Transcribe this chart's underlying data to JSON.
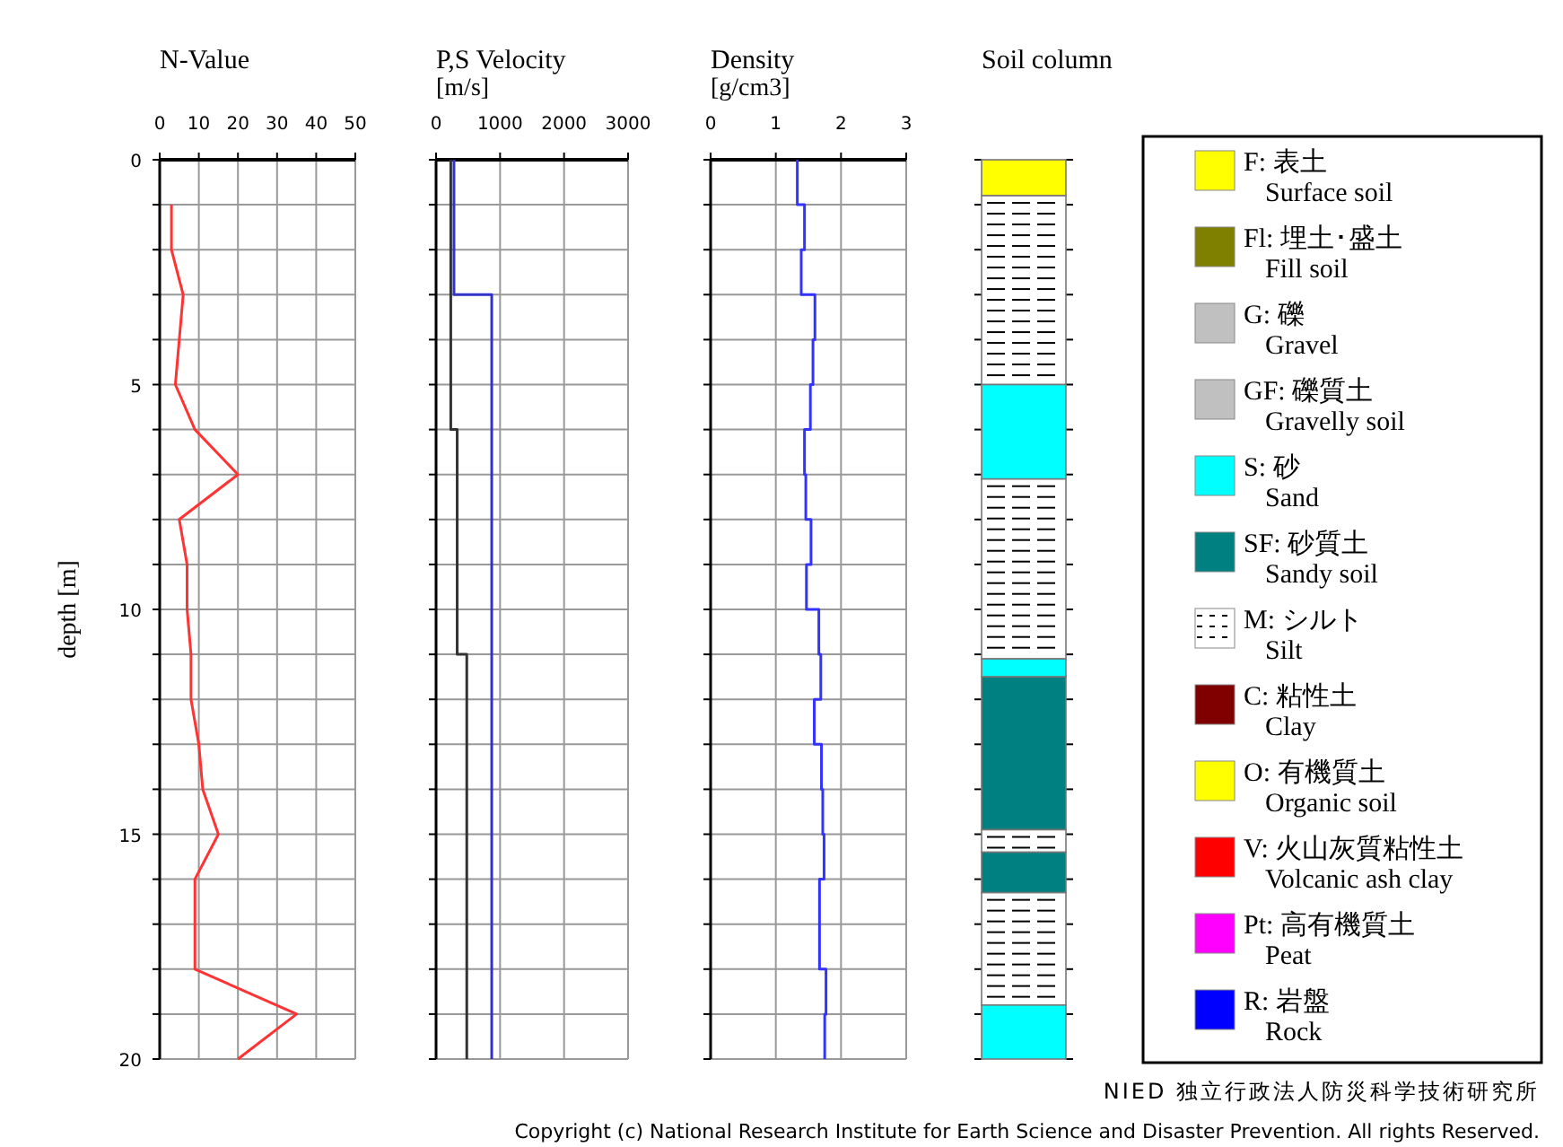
{
  "chart_data": [
    {
      "type": "line",
      "title": "N-Value",
      "ylabel": "depth [m]",
      "xlim": [
        0,
        50
      ],
      "xticks": [
        0,
        10,
        20,
        30,
        40,
        50
      ],
      "ylim": [
        20,
        0
      ],
      "yticks": [
        0,
        {
          "value": 1,
          "label": null
        },
        {
          "value": 2,
          "label": null
        },
        {
          "value": 3,
          "label": null
        },
        {
          "value": 4,
          "label": null
        },
        5,
        {
          "value": 6,
          "label": null
        },
        {
          "value": 7,
          "label": null
        },
        {
          "value": 8,
          "label": null
        },
        {
          "value": 9,
          "label": null
        },
        10,
        {
          "value": 11,
          "label": null
        },
        {
          "value": 12,
          "label": null
        },
        {
          "value": 13,
          "label": null
        },
        {
          "value": 14,
          "label": null
        },
        15,
        {
          "value": 16,
          "label": null
        },
        {
          "value": 17,
          "label": null
        },
        {
          "value": 18,
          "label": null
        },
        {
          "value": 19,
          "label": null
        },
        20
      ],
      "grid": true,
      "series": [
        {
          "color": "#ff3333",
          "x": [
            3,
            3,
            6,
            5,
            4,
            9,
            20,
            5,
            7,
            7,
            8,
            8,
            10,
            11,
            15,
            9,
            9,
            9,
            35,
            20
          ],
          "values": [
            1,
            2,
            3,
            4,
            5,
            6,
            7,
            8,
            9,
            10,
            11,
            12,
            13,
            14,
            15,
            16,
            17,
            18,
            19,
            20
          ]
        }
      ]
    },
    {
      "type": "line",
      "title": "P,S Velocity",
      "subtitle": "[m/s]",
      "xlim": [
        0,
        3000
      ],
      "xticks": [
        0,
        1000,
        2000,
        3000
      ],
      "ylim": [
        20,
        0
      ],
      "yticks": [
        {
          "value": 0,
          "label": null
        },
        {
          "value": 1,
          "label": null
        },
        {
          "value": 2,
          "label": null
        },
        {
          "value": 3,
          "label": null
        },
        {
          "value": 4,
          "label": null
        },
        {
          "value": 5,
          "label": null
        },
        {
          "value": 6,
          "label": null
        },
        {
          "value": 7,
          "label": null
        },
        {
          "value": 8,
          "label": null
        },
        {
          "value": 9,
          "label": null
        },
        {
          "value": 10,
          "label": null
        },
        {
          "value": 11,
          "label": null
        },
        {
          "value": 12,
          "label": null
        },
        {
          "value": 13,
          "label": null
        },
        {
          "value": 14,
          "label": null
        },
        {
          "value": 15,
          "label": null
        },
        {
          "value": 16,
          "label": null
        },
        {
          "value": 17,
          "label": null
        },
        {
          "value": 18,
          "label": null
        },
        {
          "value": 19,
          "label": null
        },
        {
          "value": 20,
          "label": null
        }
      ],
      "grid": true,
      "tick_labels": "x",
      "series": [
        {
          "color": "#333333",
          "x": [
            230,
            230,
            330,
            330,
            480,
            480
          ],
          "values": [
            0,
            6,
            6,
            11,
            11,
            20
          ]
        },
        {
          "color": "#3333cc",
          "x": [
            280,
            280,
            870,
            870
          ],
          "values": [
            0,
            3,
            3,
            20
          ]
        }
      ]
    },
    {
      "type": "line",
      "title": "Density",
      "subtitle": "[g/cm3]",
      "xlim": [
        0,
        3
      ],
      "xticks": [
        0,
        1,
        2,
        3
      ],
      "ylim": [
        20,
        0
      ],
      "yticks": [
        {
          "value": 0,
          "label": null
        },
        {
          "value": 1,
          "label": null
        },
        {
          "value": 2,
          "label": null
        },
        {
          "value": 3,
          "label": null
        },
        {
          "value": 4,
          "label": null
        },
        {
          "value": 5,
          "label": null
        },
        {
          "value": 6,
          "label": null
        },
        {
          "value": 7,
          "label": null
        },
        {
          "value": 8,
          "label": null
        },
        {
          "value": 9,
          "label": null
        },
        {
          "value": 10,
          "label": null
        },
        {
          "value": 11,
          "label": null
        },
        {
          "value": 12,
          "label": null
        },
        {
          "value": 13,
          "label": null
        },
        {
          "value": 14,
          "label": null
        },
        {
          "value": 15,
          "label": null
        },
        {
          "value": 16,
          "label": null
        },
        {
          "value": 17,
          "label": null
        },
        {
          "value": 18,
          "label": null
        },
        {
          "value": 19,
          "label": null
        },
        {
          "value": 20,
          "label": null
        }
      ],
      "grid": true,
      "tick_labels": "x",
      "series": [
        {
          "color": "#3333ff",
          "x": [
            1.33,
            1.33,
            1.44,
            1.44,
            1.39,
            1.39,
            1.6,
            1.6,
            1.57,
            1.57,
            1.53,
            1.53,
            1.44,
            1.44,
            1.46,
            1.46,
            1.54,
            1.54,
            1.47,
            1.47,
            1.66,
            1.66,
            1.69,
            1.69,
            1.59,
            1.59,
            1.7,
            1.7,
            1.72,
            1.72,
            1.74,
            1.74,
            1.67,
            1.67,
            1.67,
            1.67,
            1.77,
            1.77,
            1.75,
            1.75
          ],
          "values": [
            0,
            1,
            1,
            2,
            2,
            3,
            3,
            4,
            4,
            5,
            5,
            6,
            6,
            7,
            7,
            8,
            8,
            9,
            9,
            10,
            10,
            11,
            11,
            12,
            12,
            13,
            13,
            14,
            14,
            15,
            15,
            16,
            16,
            17,
            17,
            18,
            18,
            19,
            19,
            20
          ]
        }
      ]
    },
    {
      "type": "bar",
      "title": "Soil column",
      "stacked": true,
      "categories": [
        null
      ],
      "ylim": [
        20,
        0
      ],
      "yticks": [
        {
          "value": 0,
          "label": null
        },
        {
          "value": 1,
          "label": null
        },
        {
          "value": 2,
          "label": null
        },
        {
          "value": 3,
          "label": null
        },
        {
          "value": 4,
          "label": null
        },
        {
          "value": 5,
          "label": null
        },
        {
          "value": 6,
          "label": null
        },
        {
          "value": 7,
          "label": null
        },
        {
          "value": 8,
          "label": null
        },
        {
          "value": 9,
          "label": null
        },
        {
          "value": 10,
          "label": null
        },
        {
          "value": 11,
          "label": null
        },
        {
          "value": 12,
          "label": null
        },
        {
          "value": 13,
          "label": null
        },
        {
          "value": 14,
          "label": null
        },
        {
          "value": 15,
          "label": null
        },
        {
          "value": 16,
          "label": null
        },
        {
          "value": 17,
          "label": null
        },
        {
          "value": 18,
          "label": null
        },
        {
          "value": 19,
          "label": null
        },
        {
          "value": 20,
          "label": null
        }
      ],
      "tick_labels": false,
      "legend": "right",
      "series": [
        {
          "name": "F: 表土\nSurface soil",
          "color": "#ffff00",
          "values": [
            null
          ]
        },
        {
          "name": "Fl: 埋土･盛土\nFill soil",
          "color": "#808000",
          "values": [
            null
          ]
        },
        {
          "name": "G: 礫\nGravel",
          "color": "#c0c0c0",
          "values": [
            null
          ]
        },
        {
          "name": "GF: 礫質土\nGravelly soil",
          "color": "#c0c0c0",
          "values": [
            null
          ]
        },
        {
          "name": "S: 砂\nSand",
          "color": "#00ffff",
          "values": [
            null
          ]
        },
        {
          "name": "SF: 砂質土\nSandy soil",
          "color": "#008080",
          "values": [
            null
          ]
        },
        {
          "name": "M: シルト\nSilt",
          "color": "#ffffff",
          "values": [
            null
          ]
        },
        {
          "name": "C: 粘性土\nClay",
          "color": "#800000",
          "values": [
            null
          ]
        },
        {
          "name": "O: 有機質土\nOrganic soil",
          "color": "#ffff00",
          "values": [
            null
          ]
        },
        {
          "name": "V: 火山灰質粘性土\nVolcanic ash clay",
          "color": "#ff0000",
          "values": [
            null
          ]
        },
        {
          "name": "Pt: 高有機質土\nPeat",
          "color": "#ff00ff",
          "values": [
            null
          ]
        },
        {
          "name": "R: 岩盤\nRock",
          "color": "#0000ff",
          "values": [
            null
          ]
        },
        {
          "color": "#ffff00",
          "values": [
            0.8
          ]
        },
        {
          "color": "#ffffff",
          "values": [
            4.2
          ]
        },
        {
          "color": "#00ffff",
          "values": [
            2.1
          ]
        },
        {
          "color": "#ffffff",
          "values": [
            4.0
          ]
        },
        {
          "color": "#00ffff",
          "values": [
            0.4
          ]
        },
        {
          "color": "#008080",
          "values": [
            3.4
          ]
        },
        {
          "color": "#ffffff",
          "values": [
            0.5
          ]
        },
        {
          "color": "#008080",
          "values": [
            0.9
          ]
        },
        {
          "color": "#ffffff",
          "values": [
            2.5
          ]
        },
        {
          "color": "#00ffff",
          "values": [
            1.2
          ]
        }
      ],
      "annotations": [
        "NIED 独立行政法人防災科学技術研究所",
        "Copyright (c) National Research Institute for Earth Science and Disaster Prevention. All rights Reserved."
      ]
    }
  ]
}
